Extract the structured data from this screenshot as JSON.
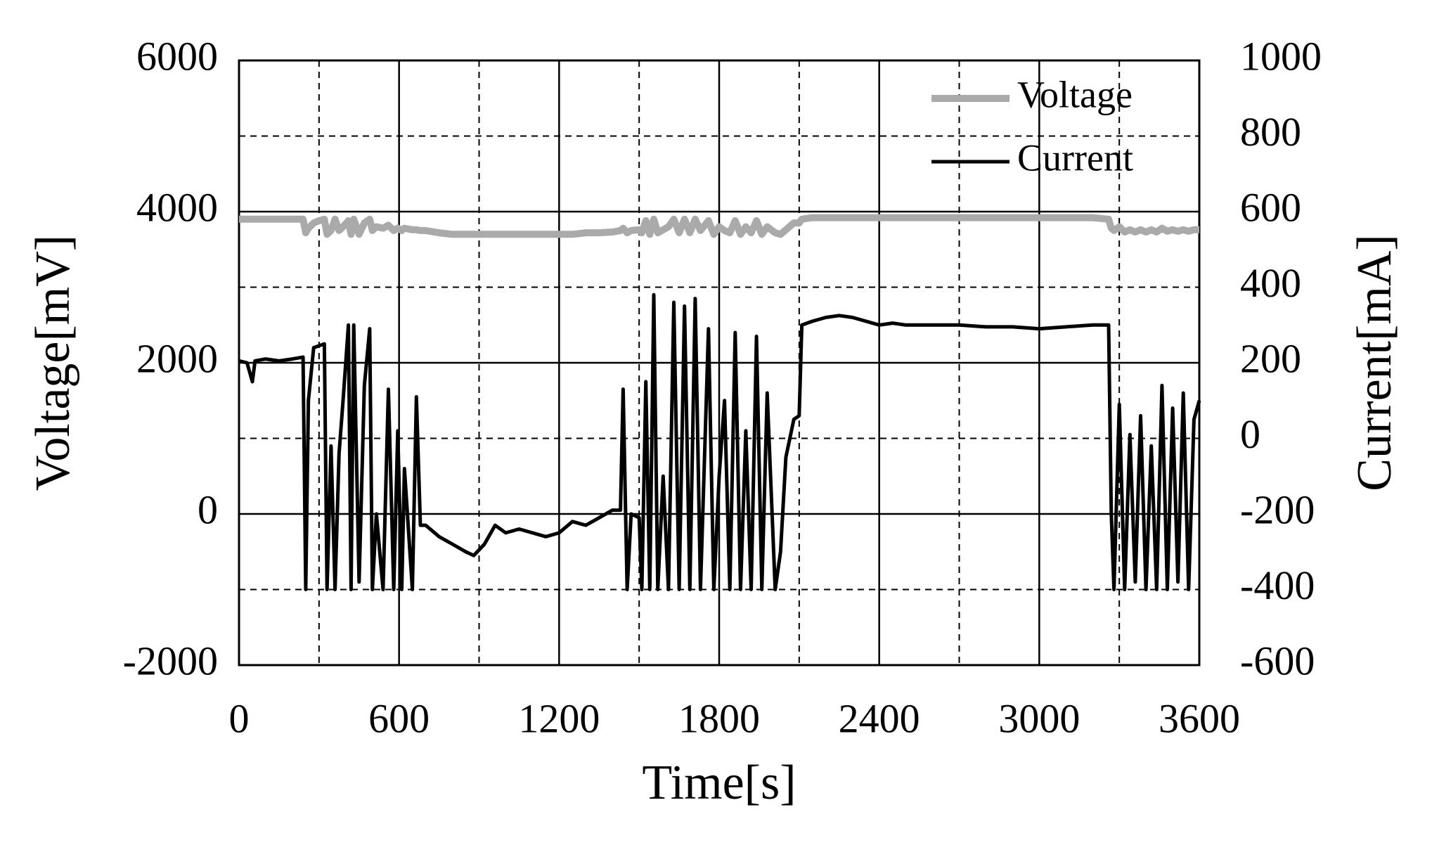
{
  "chart_data": {
    "type": "line",
    "x_label": "Time[s]",
    "y_label": "Voltage[mV]",
    "y2_label": "Current[mA]",
    "xlim": [
      0,
      3600
    ],
    "xticks": [
      0,
      600,
      1200,
      1800,
      2400,
      3000,
      3600
    ],
    "x_minor_grid": [
      300,
      900,
      1500,
      2100,
      2700,
      3300
    ],
    "ylim": [
      -2000,
      6000
    ],
    "yticks": [
      -2000,
      0,
      2000,
      4000,
      6000
    ],
    "y_minor_grid": [
      -1000,
      1000,
      3000,
      5000
    ],
    "y2lim": [
      -600,
      1000
    ],
    "y2ticks": [
      -600,
      -400,
      -200,
      0,
      200,
      400,
      600,
      800,
      1000
    ],
    "grid": true,
    "legend": "upper right",
    "x": [
      0,
      30,
      50,
      60,
      100,
      150,
      200,
      240,
      250,
      260,
      280,
      300,
      320,
      330,
      345,
      360,
      375,
      390,
      410,
      420,
      430,
      450,
      470,
      490,
      500,
      515,
      540,
      560,
      580,
      595,
      610,
      620,
      650,
      665,
      680,
      700,
      750,
      800,
      850,
      880,
      920,
      960,
      1000,
      1050,
      1100,
      1150,
      1200,
      1250,
      1300,
      1350,
      1400,
      1430,
      1440,
      1455,
      1470,
      1500,
      1510,
      1525,
      1540,
      1555,
      1570,
      1590,
      1610,
      1630,
      1650,
      1670,
      1690,
      1710,
      1730,
      1760,
      1780,
      1800,
      1820,
      1840,
      1860,
      1880,
      1900,
      1920,
      1940,
      1960,
      1980,
      2010,
      2030,
      2050,
      2080,
      2100,
      2110,
      2150,
      2200,
      2250,
      2300,
      2350,
      2400,
      2450,
      2500,
      2600,
      2700,
      2800,
      2900,
      3000,
      3100,
      3200,
      3260,
      3270,
      3280,
      3300,
      3320,
      3340,
      3360,
      3380,
      3400,
      3420,
      3440,
      3460,
      3480,
      3500,
      3520,
      3540,
      3560,
      3580,
      3600
    ],
    "series": [
      {
        "name": "Voltage",
        "color": "#aaaaaa",
        "axis": "y",
        "values": [
          3900,
          3900,
          3900,
          3900,
          3900,
          3900,
          3900,
          3900,
          3720,
          3780,
          3850,
          3880,
          3900,
          3700,
          3750,
          3900,
          3750,
          3800,
          3880,
          3700,
          3900,
          3700,
          3850,
          3900,
          3750,
          3800,
          3780,
          3820,
          3750,
          3780,
          3750,
          3780,
          3760,
          3760,
          3750,
          3750,
          3720,
          3700,
          3700,
          3700,
          3700,
          3700,
          3700,
          3700,
          3700,
          3700,
          3700,
          3700,
          3720,
          3720,
          3730,
          3750,
          3780,
          3720,
          3750,
          3760,
          3720,
          3880,
          3700,
          3900,
          3720,
          3760,
          3800,
          3900,
          3720,
          3900,
          3720,
          3900,
          3750,
          3880,
          3700,
          3800,
          3750,
          3720,
          3880,
          3700,
          3800,
          3720,
          3880,
          3700,
          3800,
          3720,
          3700,
          3760,
          3850,
          3850,
          3900,
          3920,
          3920,
          3920,
          3920,
          3920,
          3920,
          3920,
          3920,
          3920,
          3920,
          3920,
          3920,
          3920,
          3920,
          3920,
          3900,
          3780,
          3750,
          3800,
          3730,
          3760,
          3730,
          3760,
          3730,
          3760,
          3730,
          3780,
          3740,
          3760,
          3740,
          3760,
          3740,
          3760,
          3760
        ]
      },
      {
        "name": "Current",
        "color": "#000000",
        "axis": "y2",
        "values": [
          205,
          200,
          150,
          205,
          210,
          205,
          210,
          215,
          -400,
          100,
          240,
          245,
          250,
          -400,
          -20,
          -400,
          -40,
          100,
          300,
          -400,
          300,
          -380,
          140,
          290,
          -400,
          -200,
          -400,
          130,
          -400,
          20,
          -400,
          -80,
          -400,
          110,
          -230,
          -230,
          -260,
          -280,
          -300,
          -310,
          -280,
          -230,
          -250,
          -240,
          -250,
          -260,
          -250,
          -220,
          -230,
          -210,
          -190,
          -190,
          130,
          -400,
          -200,
          -210,
          -400,
          150,
          -400,
          380,
          -400,
          -100,
          -400,
          360,
          -400,
          350,
          -400,
          370,
          -400,
          290,
          -400,
          -100,
          100,
          -400,
          280,
          -400,
          20,
          -400,
          270,
          -400,
          120,
          -400,
          -300,
          -50,
          50,
          60,
          300,
          310,
          320,
          325,
          320,
          310,
          300,
          305,
          300,
          300,
          300,
          295,
          295,
          290,
          295,
          300,
          300,
          -200,
          -400,
          90,
          -400,
          10,
          -380,
          60,
          -400,
          -20,
          -400,
          140,
          -400,
          80,
          -380,
          120,
          -400,
          50,
          100
        ]
      }
    ]
  }
}
